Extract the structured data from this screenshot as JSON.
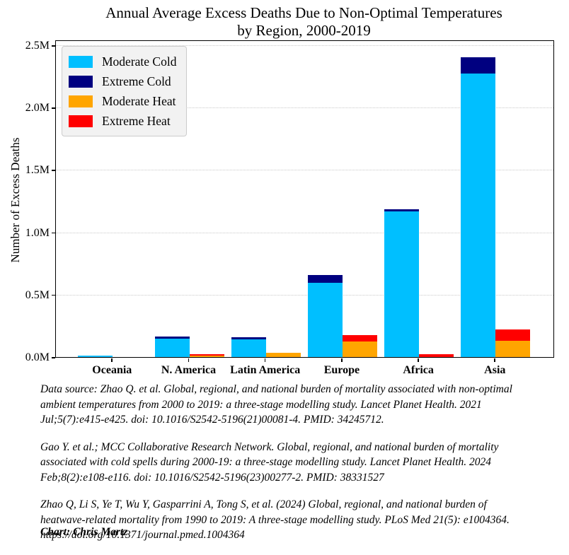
{
  "title": {
    "text": "Annual Average Excess Deaths Due to Non-Optimal Temperatures\nby Region, 2000-2019"
  },
  "chart_data": {
    "type": "bar",
    "subtype": "grouped-stacked",
    "title": "Annual Average Excess Deaths Due to Non-Optimal Temperatures by Region, 2000-2019",
    "xlabel": "",
    "ylabel": "Number of Excess Deaths",
    "categories": [
      "Oceania",
      "N. America",
      "Latin America",
      "Europe",
      "Africa",
      "Asia"
    ],
    "unit": "millions of deaths",
    "series": [
      {
        "name": "Moderate Cold",
        "color": "#00BFFF",
        "stack": "cold",
        "values": [
          0.013,
          0.15,
          0.141,
          0.596,
          1.17,
          2.275
        ]
      },
      {
        "name": "Extreme Cold",
        "color": "#000080",
        "stack": "cold",
        "values": [
          0,
          0.017,
          0.015,
          0.06,
          0.014,
          0.125
        ]
      },
      {
        "name": "Moderate Heat",
        "color": "#FFA500",
        "stack": "heat",
        "values": [
          0,
          0.013,
          0.032,
          0.123,
          0,
          0.132
        ]
      },
      {
        "name": "Extreme Heat",
        "color": "#FF0000",
        "stack": "heat",
        "values": [
          0,
          0.011,
          0,
          0.055,
          0.025,
          0.088
        ]
      }
    ],
    "stack_totals": {
      "cold": [
        0.013,
        0.167,
        0.156,
        0.656,
        1.184,
        2.4
      ],
      "heat": [
        0,
        0.024,
        0.032,
        0.178,
        0.025,
        0.22
      ]
    },
    "ylim": [
      0,
      2.533
    ],
    "ytick_values": [
      0,
      0.5,
      1.0,
      1.5,
      2.0,
      2.5
    ],
    "yticks": [
      "0.0M",
      "0.5M",
      "1.0M",
      "1.5M",
      "2.0M",
      "2.5M"
    ],
    "grid": "horizontal-dotted",
    "legend_position": "upper-left"
  },
  "footer": {
    "paragraphs": [
      {
        "lines": [
          "Data source: Zhao Q. et al. Global, regional, and national burden of mortality associated with non-optimal",
          "ambient temperatures from 2000 to 2019: a three-stage modelling study. Lancet Planet Health. 2021",
          "Jul;5(7):e415-e425. doi: 10.1016/S2542-5196(21)00081-4. PMID: 34245712."
        ]
      },
      {
        "lines": [
          "Gao Y. et al.; MCC Collaborative Research Network. Global, regional, and national burden of mortality",
          "associated with cold spells during 2000-19: a three-stage modelling study. Lancet Planet Health. 2024",
          "Feb;8(2):e108-e116. doi: 10.1016/S2542-5196(23)00277-2. PMID: 38331527"
        ]
      },
      {
        "lines": [
          "Zhao Q, Li S, Ye T, Wu Y, Gasparrini A, Tong S, et al. (2024) Global, regional, and national burden of",
          "heatwave-related mortality from 1990 to 2019: A three-stage modelling study. PLoS Med 21(5): e1004364.",
          "https://doi.org/10.1371/journal.pmed.1004364"
        ]
      }
    ],
    "credit": "Chart: Chris Martz"
  }
}
